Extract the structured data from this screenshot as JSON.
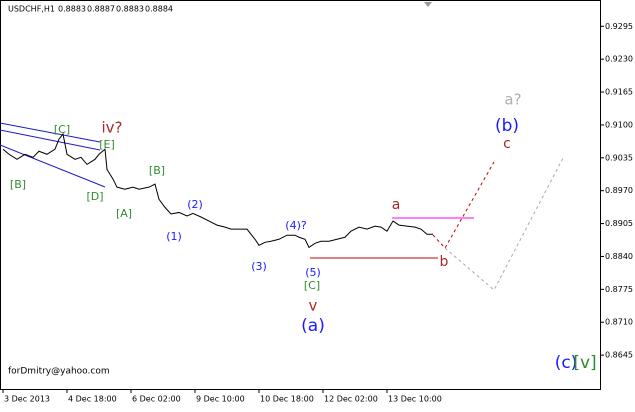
{
  "chart_data": {
    "type": "line",
    "symbol": "USDCHF,H1",
    "last_bar": [
      0.8883,
      0.8887,
      0.8883,
      0.8884
    ],
    "watermark": "forDmitry@yahoo.com",
    "x": [
      0,
      3,
      7,
      11,
      15,
      18,
      22,
      26,
      28,
      30,
      32,
      36,
      39,
      42,
      46,
      48,
      51,
      52,
      55,
      57,
      61,
      65,
      68,
      73,
      76,
      78,
      81,
      84,
      88,
      92,
      95,
      99,
      103,
      107,
      111,
      114,
      118,
      122,
      126,
      128,
      131,
      134,
      138,
      142,
      146,
      148,
      151,
      153,
      156,
      159,
      163,
      167,
      171,
      174,
      178,
      182,
      186,
      189,
      192,
      195,
      198,
      202,
      206,
      209,
      212,
      215
    ],
    "series": [
      {
        "name": "USDCHF",
        "color": "#000000",
        "values": [
          0.9052,
          0.9042,
          0.9032,
          0.9042,
          0.9036,
          0.9048,
          0.9042,
          0.9052,
          0.9072,
          0.9082,
          0.9042,
          0.9032,
          0.9036,
          0.9022,
          0.9032,
          0.9042,
          0.9052,
          0.9012,
          0.8993,
          0.8977,
          0.8973,
          0.8977,
          0.8973,
          0.8977,
          0.8983,
          0.8953,
          0.8937,
          0.8924,
          0.8927,
          0.892,
          0.8925,
          0.8918,
          0.891,
          0.8902,
          0.8898,
          0.8894,
          0.8894,
          0.8894,
          0.8874,
          0.8862,
          0.8868,
          0.887,
          0.8874,
          0.8882,
          0.8882,
          0.8878,
          0.8874,
          0.8858,
          0.8866,
          0.887,
          0.887,
          0.8874,
          0.8878,
          0.889,
          0.8898,
          0.8894,
          0.89,
          0.8898,
          0.889,
          0.891,
          0.8902,
          0.89,
          0.8898,
          0.8894,
          0.8884,
          0.8884
        ]
      }
    ],
    "xlim": [
      -1.5,
      298.5
    ],
    "xticks": [
      {
        "value": 0,
        "label": "3 Dec 2013"
      },
      {
        "value": 32,
        "label": "4 Dec 18:00"
      },
      {
        "value": 64,
        "label": "6 Dec 02:00"
      },
      {
        "value": 96,
        "label": "9 Dec 10:00"
      },
      {
        "value": 128,
        "label": "10 Dec 18:00"
      },
      {
        "value": 160,
        "label": "12 Dec 02:00"
      },
      {
        "value": 192,
        "label": "13 Dec 10:00"
      }
    ],
    "ylim": [
      0.8578,
      0.9345
    ],
    "yticks": [
      0.9295,
      {
        "value": 0.923,
        "label": "0.9230"
      },
      0.9165,
      {
        "value": 0.91,
        "label": "0.9100"
      },
      0.9035,
      {
        "value": 0.897,
        "label": "0.8970"
      },
      0.8905,
      {
        "value": 0.884,
        "label": "0.8840"
      },
      0.8775,
      {
        "value": 0.871,
        "label": "0.8710"
      },
      0.8645
    ],
    "annotations": [
      {
        "text": "[C]",
        "color": "#2e8b2e"
      },
      {
        "text": "iv?",
        "color": "#a52a2a"
      },
      {
        "text": "[E]",
        "color": "#2e8b2e"
      },
      {
        "text": "[B]",
        "color": "#2e8b2e"
      },
      {
        "text": "[D]",
        "color": "#2e8b2e"
      },
      {
        "text": "[B]",
        "color": "#2e8b2e"
      },
      {
        "text": "[A]",
        "color": "#2e8b2e"
      },
      {
        "text": "(2)",
        "color": "#1a1aff"
      },
      {
        "text": "(1)",
        "color": "#1a1aff"
      },
      {
        "text": "(3)",
        "color": "#1a1aff"
      },
      {
        "text": "(4)?",
        "color": "#1a1aff"
      },
      {
        "text": "(5)",
        "color": "#1a1aff"
      },
      {
        "text": "[C]",
        "color": "#2e8b2e"
      },
      {
        "text": "v",
        "color": "#a52a2a"
      },
      {
        "text": "(a)",
        "color": "#1a1aff"
      },
      {
        "text": "a",
        "color": "#a52a2a"
      },
      {
        "text": "b",
        "color": "#a52a2a"
      },
      {
        "text": "c",
        "color": "#a52a2a"
      },
      {
        "text": "(b)",
        "color": "#1a1aff"
      },
      {
        "text": "a?",
        "color": "#b0b0b0"
      },
      {
        "text": "(c)",
        "color": "#1a1aff"
      },
      {
        "text": "[v]",
        "color": "#2e8b2e"
      }
    ]
  }
}
